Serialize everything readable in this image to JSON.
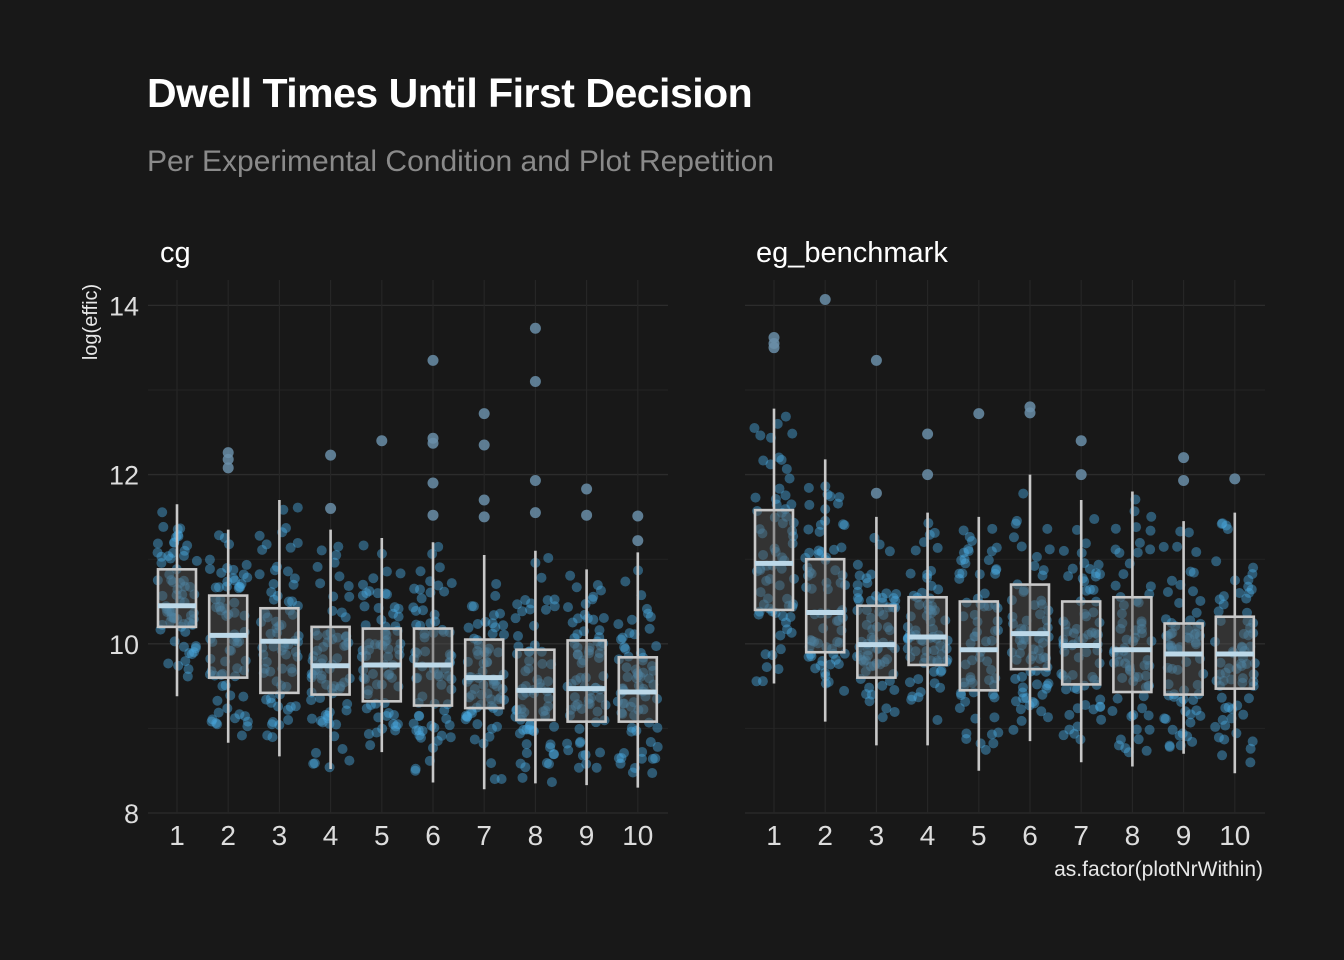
{
  "chart_data": {
    "type": "boxplot",
    "title": "Dwell Times Until First Decision",
    "subtitle": "Per Experimental Condition and Plot Repetition",
    "xlabel": "as.factor(plotNrWithin)",
    "ylabel": "log(effic)",
    "ylim": [
      8,
      14.3
    ],
    "yticks": [
      8,
      10,
      12,
      14
    ],
    "categories": [
      "1",
      "2",
      "3",
      "4",
      "5",
      "6",
      "7",
      "8",
      "9",
      "10"
    ],
    "grid": true,
    "jitter_points": true,
    "colors": {
      "background": "#181818",
      "points": "#4aa8e0",
      "box_fill": "#555555",
      "box_line": "#c8c8c8",
      "grid": "#2a2a2a",
      "text": "#dddddd"
    },
    "panels": [
      {
        "name": "cg",
        "boxes": [
          {
            "q1": 10.2,
            "median": 10.45,
            "q3": 10.88,
            "low": 9.38,
            "high": 11.65,
            "outliers": []
          },
          {
            "q1": 9.6,
            "median": 10.1,
            "q3": 10.57,
            "low": 8.83,
            "high": 11.35,
            "outliers": [
              12.08,
              12.18,
              12.26
            ]
          },
          {
            "q1": 9.42,
            "median": 10.03,
            "q3": 10.42,
            "low": 8.67,
            "high": 11.7,
            "outliers": []
          },
          {
            "q1": 9.4,
            "median": 9.74,
            "q3": 10.2,
            "low": 8.52,
            "high": 11.35,
            "outliers": [
              11.6,
              12.23
            ]
          },
          {
            "q1": 9.32,
            "median": 9.75,
            "q3": 10.18,
            "low": 8.72,
            "high": 11.25,
            "outliers": [
              12.4
            ]
          },
          {
            "q1": 9.27,
            "median": 9.75,
            "q3": 10.18,
            "low": 8.36,
            "high": 11.2,
            "outliers": [
              11.52,
              11.9,
              12.37,
              12.43,
              13.35
            ]
          },
          {
            "q1": 9.24,
            "median": 9.6,
            "q3": 10.05,
            "low": 8.28,
            "high": 11.05,
            "outliers": [
              11.5,
              11.7,
              12.35,
              12.72
            ]
          },
          {
            "q1": 9.1,
            "median": 9.45,
            "q3": 9.93,
            "low": 8.35,
            "high": 11.1,
            "outliers": [
              11.55,
              11.93,
              13.1,
              13.73
            ]
          },
          {
            "q1": 9.08,
            "median": 9.47,
            "q3": 10.04,
            "low": 8.33,
            "high": 10.88,
            "outliers": [
              11.52,
              11.83
            ]
          },
          {
            "q1": 9.08,
            "median": 9.43,
            "q3": 9.84,
            "low": 8.3,
            "high": 11.08,
            "outliers": [
              11.22,
              11.51
            ]
          }
        ]
      },
      {
        "name": "eg_benchmark",
        "boxes": [
          {
            "q1": 10.4,
            "median": 10.95,
            "q3": 11.58,
            "low": 9.53,
            "high": 12.78,
            "outliers": [
              13.5,
              13.55,
              13.62
            ]
          },
          {
            "q1": 9.9,
            "median": 10.37,
            "q3": 11.0,
            "low": 9.08,
            "high": 12.18,
            "outliers": [
              14.07
            ]
          },
          {
            "q1": 9.6,
            "median": 9.99,
            "q3": 10.45,
            "low": 8.8,
            "high": 11.5,
            "outliers": [
              11.78,
              13.35
            ]
          },
          {
            "q1": 9.75,
            "median": 10.08,
            "q3": 10.55,
            "low": 8.8,
            "high": 11.55,
            "outliers": [
              12.0,
              12.48
            ]
          },
          {
            "q1": 9.45,
            "median": 9.93,
            "q3": 10.5,
            "low": 8.5,
            "high": 11.5,
            "outliers": [
              12.72
            ]
          },
          {
            "q1": 9.7,
            "median": 10.12,
            "q3": 10.7,
            "low": 8.85,
            "high": 12.0,
            "outliers": [
              12.73,
              12.8
            ]
          },
          {
            "q1": 9.52,
            "median": 9.98,
            "q3": 10.5,
            "low": 8.6,
            "high": 11.7,
            "outliers": [
              12.0,
              12.4
            ]
          },
          {
            "q1": 9.43,
            "median": 9.93,
            "q3": 10.55,
            "low": 8.55,
            "high": 11.8,
            "outliers": []
          },
          {
            "q1": 9.4,
            "median": 9.88,
            "q3": 10.24,
            "low": 8.7,
            "high": 11.45,
            "outliers": [
              11.93,
              12.2
            ]
          },
          {
            "q1": 9.47,
            "median": 9.88,
            "q3": 10.32,
            "low": 8.47,
            "high": 11.55,
            "outliers": [
              11.95
            ]
          }
        ]
      }
    ]
  }
}
